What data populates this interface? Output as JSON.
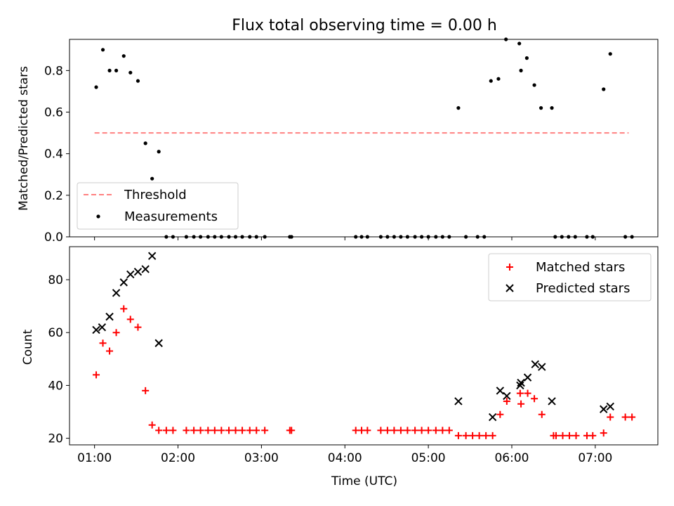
{
  "chart_data": [
    {
      "type": "scatter",
      "title": "Flux total observing time = 0.00 h",
      "ylabel": "Matched/Predicted stars",
      "xlabel": "",
      "x_unit": "hours UTC",
      "xlim": [
        0.7,
        7.75
      ],
      "ylim": [
        0.0,
        0.95
      ],
      "yticks": [
        0.0,
        0.2,
        0.4,
        0.6,
        0.8
      ],
      "yticklabels": [
        "0.0",
        "0.2",
        "0.4",
        "0.6",
        "0.8"
      ],
      "xticks": [
        1,
        2,
        3,
        4,
        5,
        6,
        7
      ],
      "threshold": {
        "name": "Threshold",
        "value": 0.5,
        "x_range": [
          1.0,
          7.4
        ],
        "color": "#ff8080",
        "style": "dashed"
      },
      "series": [
        {
          "name": "Measurements",
          "color": "#000000",
          "marker": "dot",
          "points": [
            [
              1.02,
              0.72
            ],
            [
              1.1,
              0.9
            ],
            [
              1.18,
              0.8
            ],
            [
              1.26,
              0.8
            ],
            [
              1.35,
              0.87
            ],
            [
              1.43,
              0.79
            ],
            [
              1.52,
              0.75
            ],
            [
              1.61,
              0.45
            ],
            [
              1.69,
              0.28
            ],
            [
              1.77,
              0.41
            ],
            [
              1.86,
              0.0
            ],
            [
              1.94,
              0.0
            ],
            [
              2.1,
              0.0
            ],
            [
              2.19,
              0.0
            ],
            [
              2.27,
              0.0
            ],
            [
              2.36,
              0.0
            ],
            [
              2.44,
              0.0
            ],
            [
              2.52,
              0.0
            ],
            [
              2.61,
              0.0
            ],
            [
              2.69,
              0.0
            ],
            [
              2.77,
              0.0
            ],
            [
              2.86,
              0.0
            ],
            [
              2.94,
              0.0
            ],
            [
              3.04,
              0.0
            ],
            [
              3.34,
              0.0
            ],
            [
              3.36,
              0.0
            ],
            [
              4.13,
              0.0
            ],
            [
              4.2,
              0.0
            ],
            [
              4.27,
              0.0
            ],
            [
              4.43,
              0.0
            ],
            [
              4.51,
              0.0
            ],
            [
              4.59,
              0.0
            ],
            [
              4.67,
              0.0
            ],
            [
              4.75,
              0.0
            ],
            [
              4.84,
              0.0
            ],
            [
              4.92,
              0.0
            ],
            [
              5.0,
              0.0
            ],
            [
              5.09,
              0.0
            ],
            [
              5.17,
              0.0
            ],
            [
              5.25,
              0.0
            ],
            [
              5.36,
              0.62
            ],
            [
              5.45,
              0.0
            ],
            [
              5.59,
              0.0
            ],
            [
              5.67,
              0.0
            ],
            [
              5.75,
              0.75
            ],
            [
              5.84,
              0.76
            ],
            [
              5.93,
              0.95
            ],
            [
              6.09,
              0.93
            ],
            [
              6.11,
              0.8
            ],
            [
              6.18,
              0.86
            ],
            [
              6.27,
              0.73
            ],
            [
              6.35,
              0.62
            ],
            [
              6.48,
              0.62
            ],
            [
              6.52,
              0.0
            ],
            [
              6.6,
              0.0
            ],
            [
              6.68,
              0.0
            ],
            [
              6.76,
              0.0
            ],
            [
              6.9,
              0.0
            ],
            [
              6.97,
              0.0
            ],
            [
              7.1,
              0.71
            ],
            [
              7.18,
              0.88
            ],
            [
              7.36,
              0.0
            ],
            [
              7.44,
              0.0
            ]
          ]
        }
      ],
      "legend_position": "lower-left"
    },
    {
      "type": "scatter",
      "title": "",
      "ylabel": "Count",
      "xlabel": "Time (UTC)",
      "x_unit": "hours UTC",
      "xlim": [
        0.7,
        7.75
      ],
      "ylim": [
        17.5,
        92.5
      ],
      "yticks": [
        20,
        40,
        60,
        80
      ],
      "yticklabels": [
        "20",
        "40",
        "60",
        "80"
      ],
      "xticks": [
        1,
        2,
        3,
        4,
        5,
        6,
        7
      ],
      "xticklabels": [
        "01:00",
        "02:00",
        "03:00",
        "04:00",
        "05:00",
        "06:00",
        "07:00"
      ],
      "series": [
        {
          "name": "Matched stars",
          "color": "#ff0000",
          "marker": "plus",
          "points": [
            [
              1.02,
              44
            ],
            [
              1.1,
              56
            ],
            [
              1.18,
              53
            ],
            [
              1.26,
              60
            ],
            [
              1.35,
              69
            ],
            [
              1.43,
              65
            ],
            [
              1.52,
              62
            ],
            [
              1.61,
              38
            ],
            [
              1.69,
              25
            ],
            [
              1.77,
              23
            ],
            [
              1.86,
              23
            ],
            [
              1.94,
              23
            ],
            [
              2.1,
              23
            ],
            [
              2.19,
              23
            ],
            [
              2.27,
              23
            ],
            [
              2.36,
              23
            ],
            [
              2.44,
              23
            ],
            [
              2.52,
              23
            ],
            [
              2.61,
              23
            ],
            [
              2.69,
              23
            ],
            [
              2.77,
              23
            ],
            [
              2.86,
              23
            ],
            [
              2.94,
              23
            ],
            [
              3.04,
              23
            ],
            [
              3.34,
              23
            ],
            [
              3.36,
              23
            ],
            [
              4.13,
              23
            ],
            [
              4.2,
              23
            ],
            [
              4.27,
              23
            ],
            [
              4.43,
              23
            ],
            [
              4.51,
              23
            ],
            [
              4.59,
              23
            ],
            [
              4.67,
              23
            ],
            [
              4.75,
              23
            ],
            [
              4.84,
              23
            ],
            [
              4.92,
              23
            ],
            [
              5.0,
              23
            ],
            [
              5.09,
              23
            ],
            [
              5.17,
              23
            ],
            [
              5.25,
              23
            ],
            [
              5.36,
              21
            ],
            [
              5.45,
              21
            ],
            [
              5.53,
              21
            ],
            [
              5.61,
              21
            ],
            [
              5.69,
              21
            ],
            [
              5.77,
              21
            ],
            [
              5.86,
              29
            ],
            [
              5.94,
              34
            ],
            [
              6.1,
              37
            ],
            [
              6.11,
              33
            ],
            [
              6.19,
              37
            ],
            [
              6.27,
              35
            ],
            [
              6.36,
              29
            ],
            [
              6.5,
              21
            ],
            [
              6.53,
              21
            ],
            [
              6.61,
              21
            ],
            [
              6.69,
              21
            ],
            [
              6.77,
              21
            ],
            [
              6.9,
              21
            ],
            [
              6.97,
              21
            ],
            [
              7.1,
              22
            ],
            [
              7.18,
              28
            ],
            [
              7.36,
              28
            ],
            [
              7.44,
              28
            ]
          ]
        },
        {
          "name": "Predicted stars",
          "color": "#000000",
          "marker": "x",
          "points": [
            [
              1.02,
              61
            ],
            [
              1.09,
              62
            ],
            [
              1.18,
              66
            ],
            [
              1.26,
              75
            ],
            [
              1.35,
              79
            ],
            [
              1.43,
              82
            ],
            [
              1.52,
              83
            ],
            [
              1.61,
              84
            ],
            [
              1.69,
              89
            ],
            [
              1.77,
              56
            ],
            [
              5.36,
              34
            ],
            [
              5.77,
              28
            ],
            [
              5.86,
              38
            ],
            [
              5.94,
              36
            ],
            [
              6.1,
              40
            ],
            [
              6.11,
              41
            ],
            [
              6.19,
              43
            ],
            [
              6.28,
              48
            ],
            [
              6.36,
              47
            ],
            [
              6.48,
              34
            ],
            [
              7.1,
              31
            ],
            [
              7.18,
              32
            ]
          ]
        }
      ],
      "legend_position": "upper-right"
    }
  ]
}
